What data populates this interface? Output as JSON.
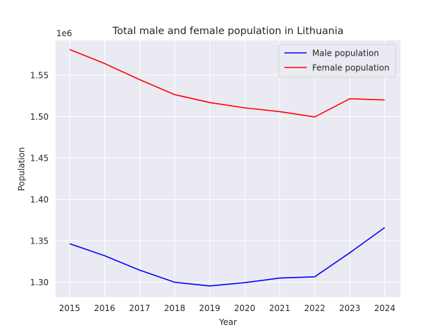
{
  "chart_data": {
    "type": "line",
    "title": "Total male and female population in Lithuania",
    "xlabel": "Year",
    "ylabel": "Population",
    "y_offset_label": "1e6",
    "x": [
      2015,
      2016,
      2017,
      2018,
      2019,
      2020,
      2021,
      2022,
      2023,
      2024
    ],
    "xlim": [
      2014.6,
      2024.45
    ],
    "ylim": [
      1.282,
      1.592
    ],
    "y_scale_factor": 1000000,
    "yticks": [
      1.3,
      1.35,
      1.4,
      1.45,
      1.5,
      1.55
    ],
    "ytick_labels": [
      "1.30",
      "1.35",
      "1.40",
      "1.45",
      "1.50",
      "1.55"
    ],
    "xtick_labels": [
      "2015",
      "2016",
      "2017",
      "2018",
      "2019",
      "2020",
      "2021",
      "2022",
      "2023",
      "2024"
    ],
    "grid": true,
    "legend_position": "top-right",
    "series": [
      {
        "name": "Male population",
        "color": "#0000ff",
        "values": [
          1.3465,
          1.332,
          1.3145,
          1.3,
          1.2955,
          1.2995,
          1.305,
          1.3065,
          1.3355,
          1.366
        ]
      },
      {
        "name": "Female population",
        "color": "#ff0000",
        "values": [
          1.581,
          1.564,
          1.5445,
          1.5265,
          1.517,
          1.5105,
          1.506,
          1.4995,
          1.5215,
          1.52
        ]
      }
    ]
  }
}
